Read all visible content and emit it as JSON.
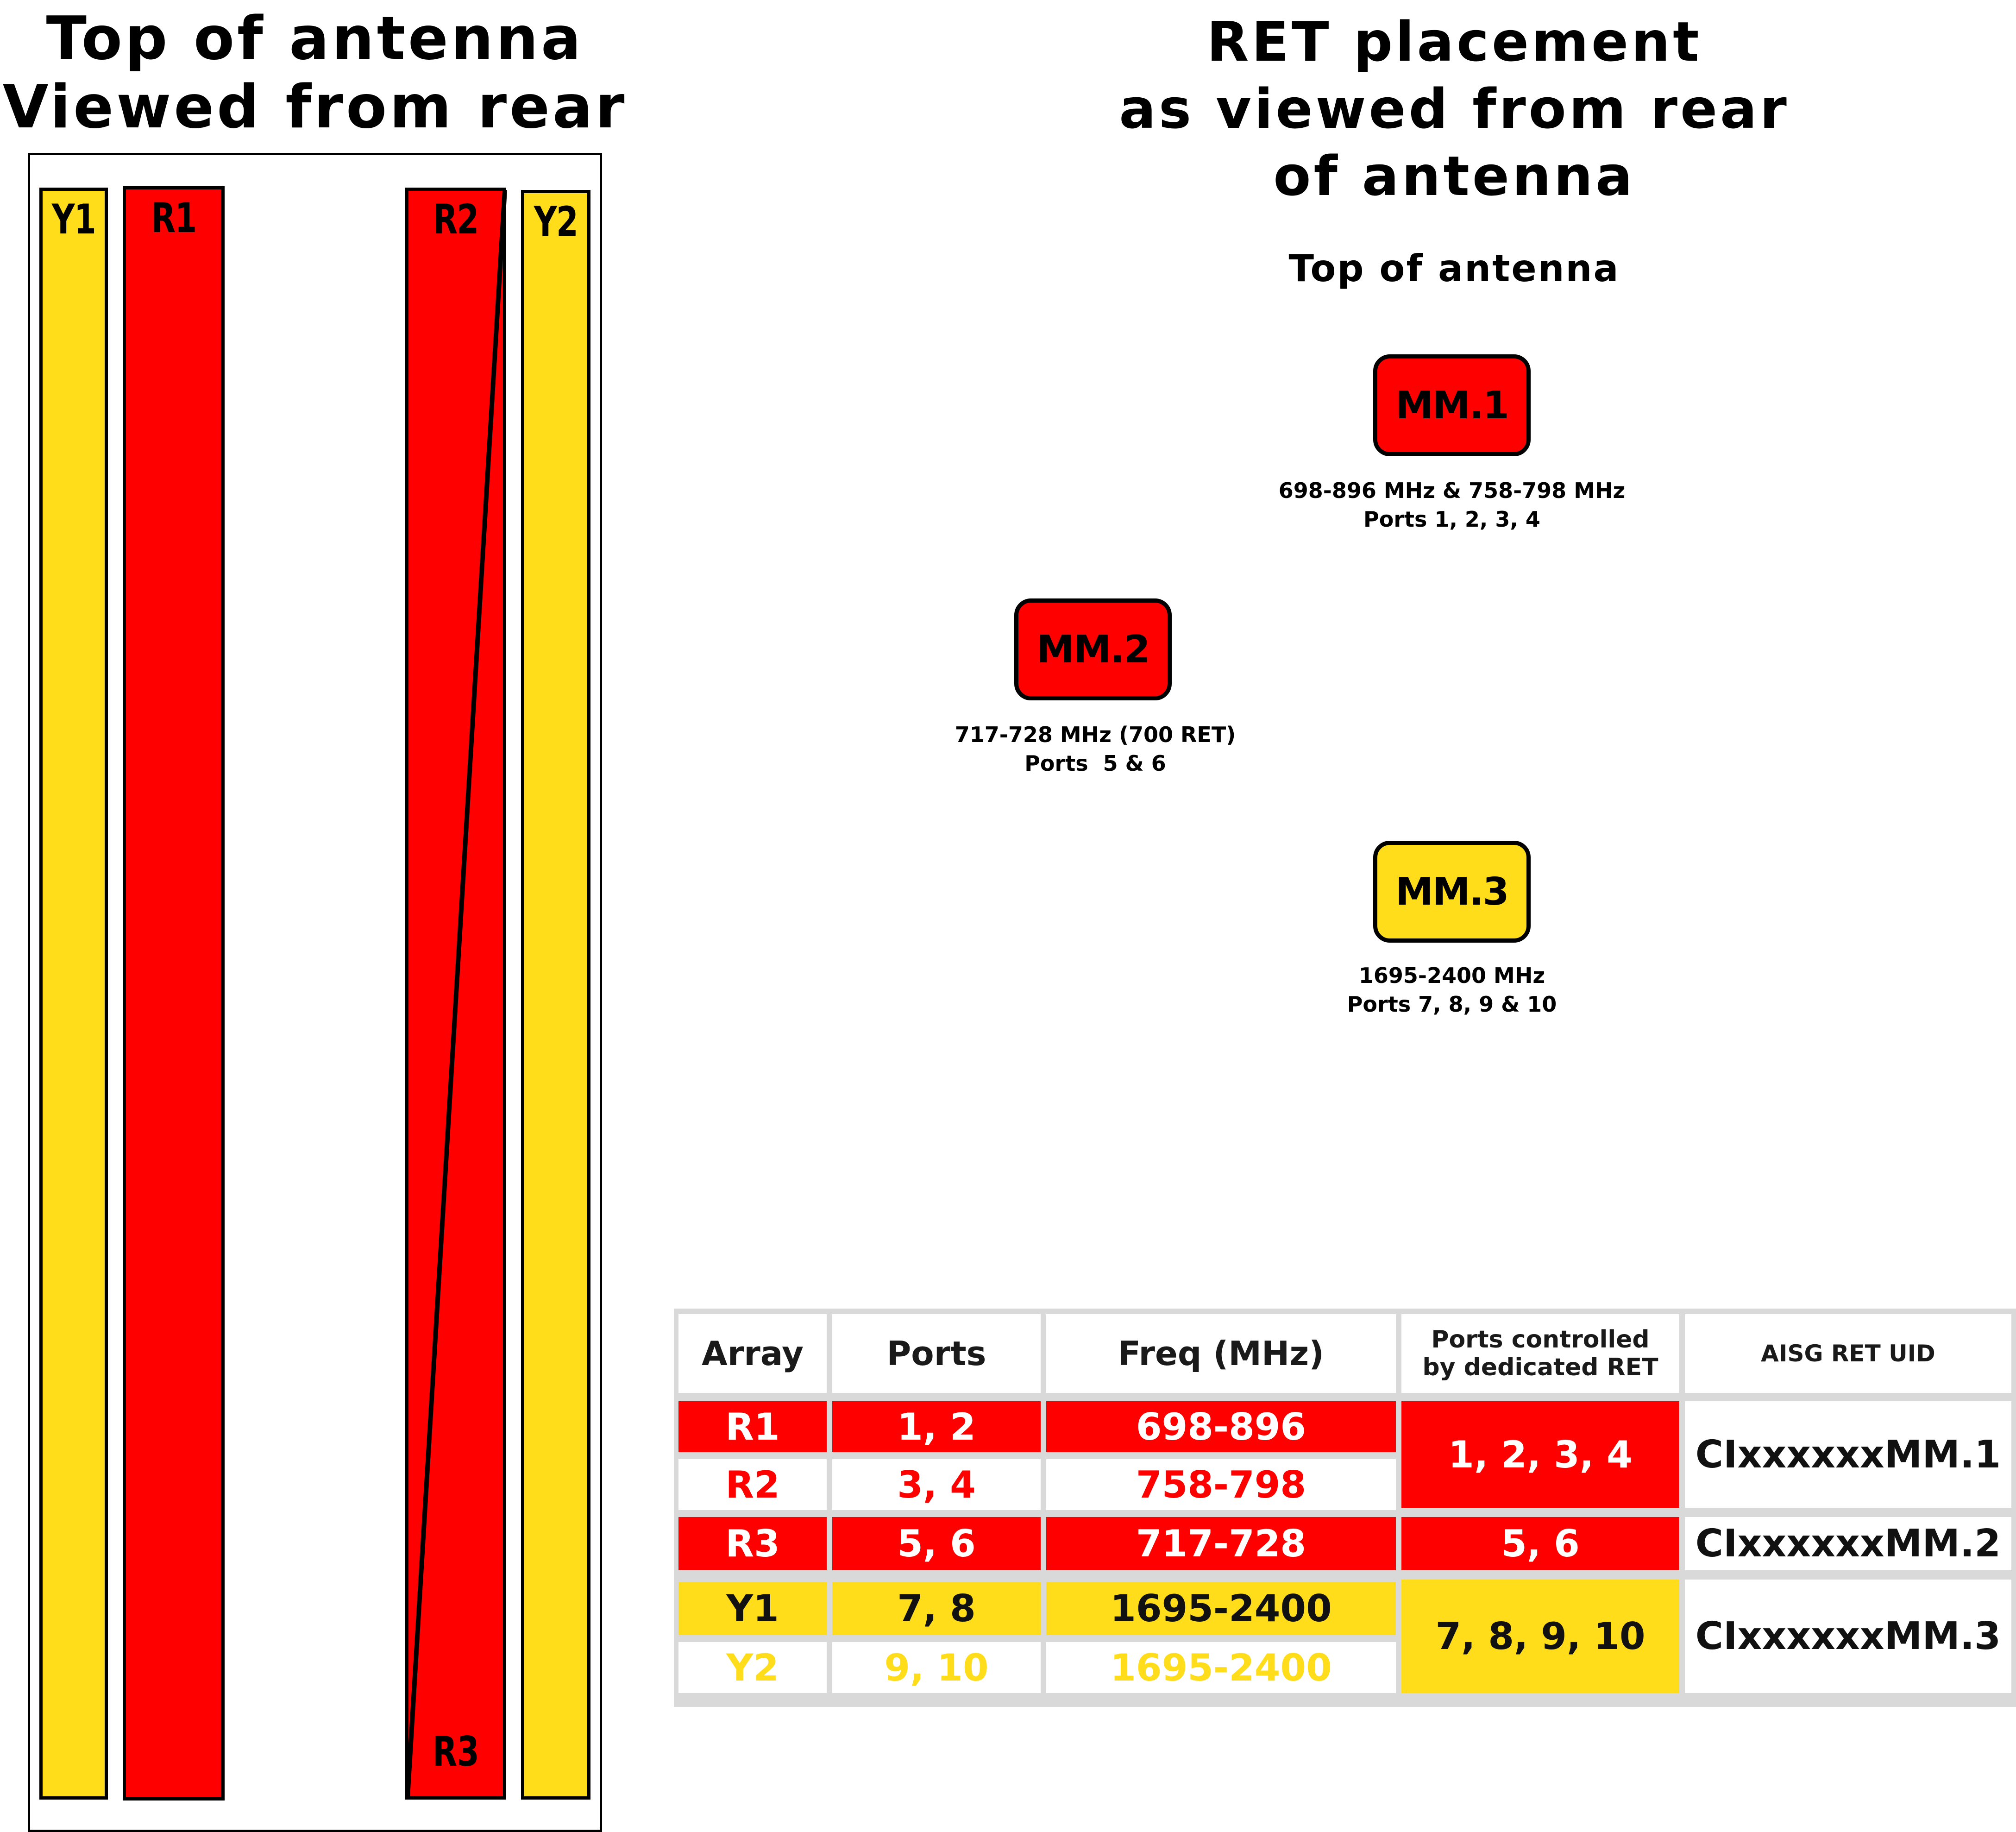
{
  "left_title": [
    "Top of antenna",
    "Viewed from rear"
  ],
  "right_title": [
    "RET placement",
    "as viewed from rear",
    "of antenna"
  ],
  "right_subtitle": "Top of antenna",
  "colors": {
    "red": "#ff0000",
    "yellow": "#ffdd1a",
    "white": "#ffffff",
    "border": "#000000",
    "grid": "#d9d9d9"
  },
  "arrays": {
    "y1": {
      "label": "Y1",
      "color": "#ffdd1a"
    },
    "r1": {
      "label": "R1",
      "color": "#ff0000"
    },
    "r2": {
      "label": "R2",
      "color": "#ff0000"
    },
    "r3": {
      "label": "R3",
      "color": "#ff0000"
    },
    "y2": {
      "label": "Y2",
      "color": "#ffdd1a"
    }
  },
  "rets": [
    {
      "label": "MM.1",
      "color": "#ff0000",
      "caption": [
        "698-896 MHz & 758-798 MHz",
        "Ports 1, 2, 3, 4"
      ]
    },
    {
      "label": "MM.2",
      "color": "#ff0000",
      "caption": [
        "717-728 MHz (700 RET)",
        "Ports  5 & 6"
      ]
    },
    {
      "label": "MM.3",
      "color": "#ffdd1a",
      "caption": [
        "1695-2400 MHz",
        "Ports 7, 8, 9 & 10"
      ]
    }
  ],
  "table": {
    "headers": {
      "array": "Array",
      "ports": "Ports",
      "freq": "Freq (MHz)",
      "controlled": [
        "Ports controlled",
        "by dedicated RET"
      ],
      "uid": "AISG RET UID"
    },
    "rows": [
      {
        "array": "R1",
        "ports": "1, 2",
        "freq": "698-896",
        "bg": "#ff0000",
        "fg": "#ffffff"
      },
      {
        "array": "R2",
        "ports": "3, 4",
        "freq": "758-798",
        "bg": "#ffffff",
        "fg": "#ff0000"
      },
      {
        "array": "R3",
        "ports": "5, 6",
        "freq": "717-728",
        "bg": "#ff0000",
        "fg": "#ffffff"
      },
      {
        "array": "Y1",
        "ports": "7, 8",
        "freq": "1695-2400",
        "bg": "#ffdd1a",
        "fg": "#111111"
      },
      {
        "array": "Y2",
        "ports": "9, 10",
        "freq": "1695-2400",
        "bg": "#ffffff",
        "fg": "#ffdd1a"
      }
    ],
    "groups": [
      {
        "controlled": "1, 2, 3, 4",
        "uid": "CIxxxxxxMM.1",
        "bg": "#ff0000",
        "fg": "#ffffff"
      },
      {
        "controlled": "5, 6",
        "uid": "CIxxxxxxMM.2",
        "bg": "#ff0000",
        "fg": "#ffffff"
      },
      {
        "controlled": "7, 8, 9, 10",
        "uid": "CIxxxxxxMM.3",
        "bg": "#ffdd1a",
        "fg": "#111111"
      }
    ]
  }
}
